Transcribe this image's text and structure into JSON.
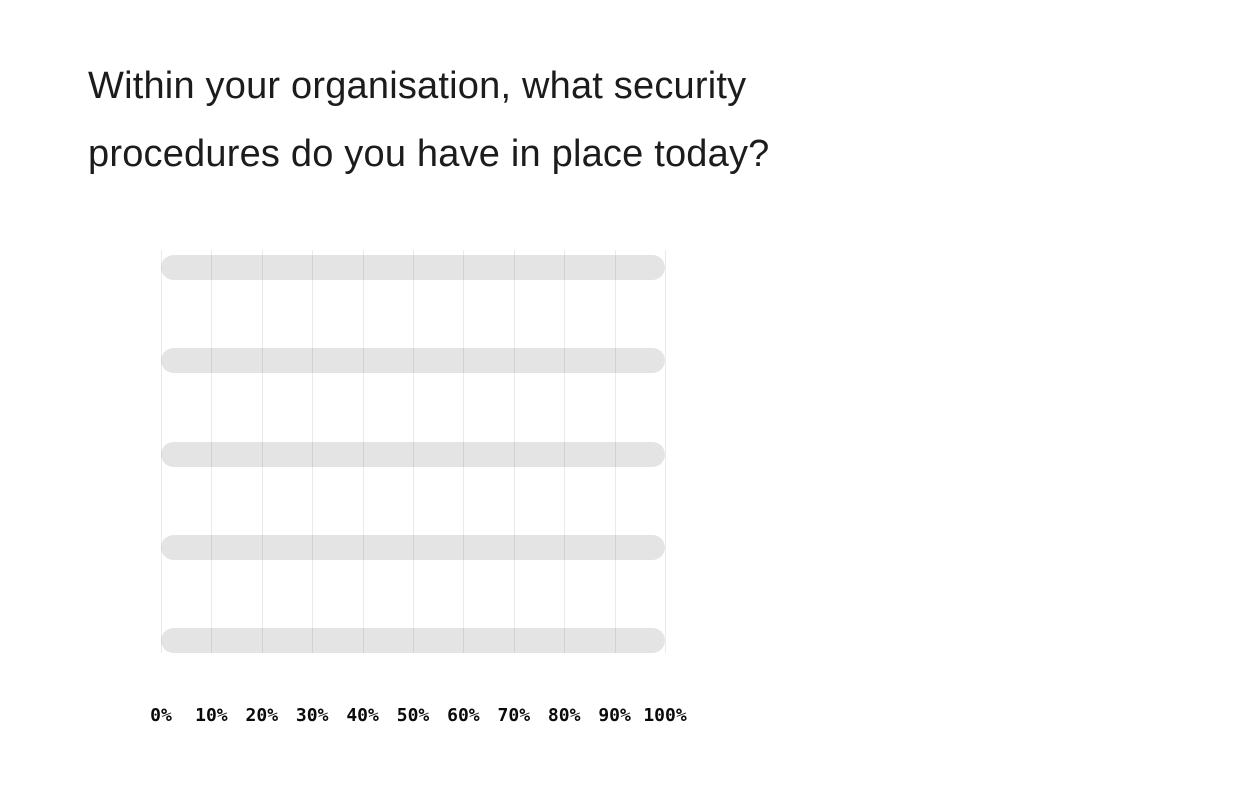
{
  "title": {
    "text": "Within your organisation, what security procedures do you have in place today?",
    "lines": [
      "Within your organisation, what security",
      "procedures do you have in place today?"
    ]
  },
  "chart_data": {
    "type": "bar",
    "orientation": "horizontal",
    "title": "Within your organisation, what security procedures do you have in place today?",
    "categories": [
      "",
      "",
      "",
      "",
      ""
    ],
    "values": [
      100,
      100,
      100,
      100,
      100
    ],
    "xlabel": "",
    "ylabel": "",
    "xlim": [
      0,
      100
    ],
    "x_tick_labels": [
      "0%",
      "10%",
      "20%",
      "30%",
      "40%",
      "50%",
      "60%",
      "70%",
      "80%",
      "90%",
      "100%"
    ],
    "grid": "vertical-only",
    "legend": "none",
    "bar_color": "#e3e3e3",
    "gridline_color": "#eaeaea",
    "title_color": "#1c1c1c",
    "tick_label_color": "#0b0b0b",
    "background_color": "#ffffff"
  }
}
